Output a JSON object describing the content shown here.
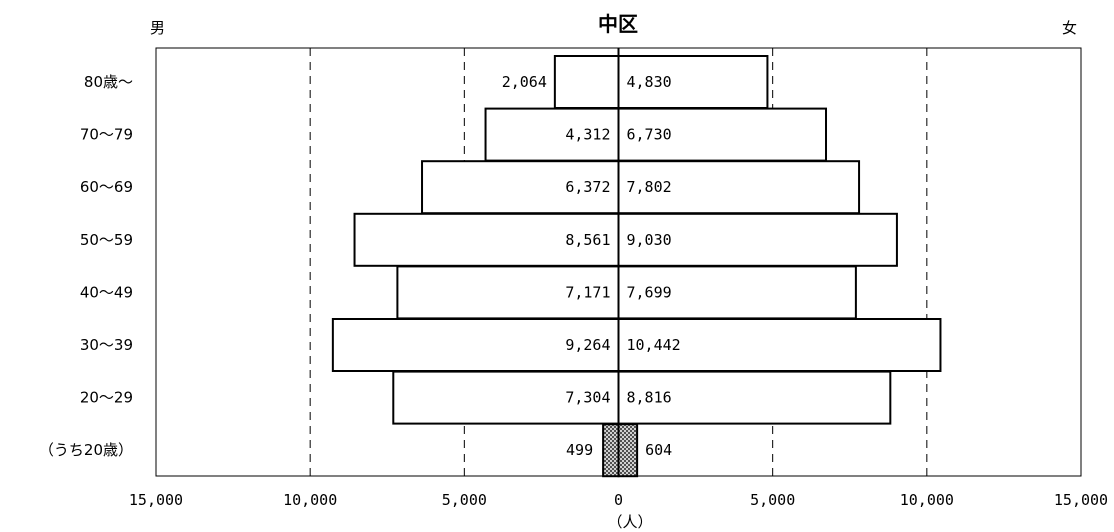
{
  "chart_data": {
    "type": "bar",
    "orientation": "horizontal",
    "title": "中区",
    "left_label": "男",
    "right_label": "女",
    "unit_label": "（人）",
    "xlim": [
      -15000,
      15000
    ],
    "xticks": [
      -15000,
      -10000,
      -5000,
      0,
      5000,
      10000,
      15000
    ],
    "xtick_labels": [
      "15,000",
      "10,000",
      "5,000",
      "0",
      "5,000",
      "10,000",
      "15,000"
    ],
    "grid": true,
    "categories": [
      "80歳～",
      "70～79",
      "60～69",
      "50～59",
      "40～49",
      "30～39",
      "20～29",
      "（うち20歳）"
    ],
    "series": [
      {
        "name": "男",
        "values": [
          2064,
          4312,
          6372,
          8561,
          7171,
          9264,
          7304,
          499
        ],
        "labels": [
          "2,064",
          "4,312",
          "6,372",
          "8,561",
          "7,171",
          "9,264",
          "7,304",
          "499"
        ]
      },
      {
        "name": "女",
        "values": [
          4830,
          6730,
          7802,
          9030,
          7699,
          10442,
          8816,
          604
        ],
        "labels": [
          "4,830",
          "6,730",
          "7,802",
          "9,030",
          "7,699",
          "10,442",
          "8,816",
          "604"
        ]
      }
    ],
    "highlight_category": "（うち20歳）",
    "colors": {
      "bar_fill": "#ffffff",
      "bar_stroke": "#000000",
      "highlight_fill": "#9a9a9a"
    }
  }
}
